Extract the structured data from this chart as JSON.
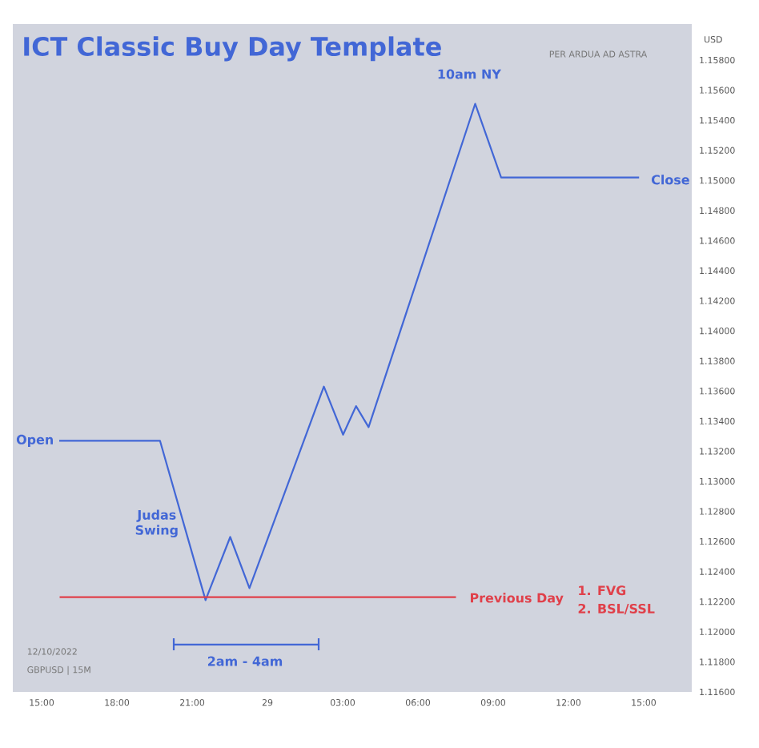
{
  "chart_data": {
    "type": "line",
    "title": "ICT Classic Buy Day Template",
    "ylabel": "USD",
    "annotations": [
      "PER ARDUA AD ASTRA",
      "12/10/2022",
      "GBPUSD | 15M",
      "Open",
      "Judas Swing",
      "10am NY",
      "Close",
      "Previous Day",
      "1. FVG",
      "2. BSL/SSL",
      "2am - 4am"
    ],
    "series": [
      {
        "color": "#4267d6",
        "x": [
          "2022-09-28T15:42",
          "2022-09-28T19:43",
          "2022-09-28T21:32",
          "2022-09-28T22:31",
          "2022-09-28T23:17",
          "2022-09-29T02:15",
          "2022-09-29T03:01",
          "2022-09-29T03:32",
          "2022-09-29T04:02",
          "2022-09-29T08:17",
          "2022-09-29T09:19",
          "2022-09-29T14:49"
        ],
        "values": [
          1.1327,
          1.1327,
          1.1221,
          1.1263,
          1.1229,
          1.1363,
          1.1331,
          1.135,
          1.1336,
          1.1551,
          1.1502,
          1.1502
        ]
      },
      {
        "color": "#e0404a",
        "x": [
          "2022-09-28T15:43",
          "2022-09-29T07:31"
        ],
        "values": [
          1.1223,
          1.1223
        ]
      }
    ],
    "xlim": [
      "2022-09-28T13:51",
      "2022-09-29T16:55"
    ],
    "ylim": [
      1.116,
      1.1604
    ],
    "xticks": [
      {
        "value": "2022-09-28T15:00",
        "label": "15:00"
      },
      {
        "value": "2022-09-28T18:00",
        "label": "18:00"
      },
      {
        "value": "2022-09-28T21:00",
        "label": "21:00"
      },
      {
        "value": "2022-09-29T00:00",
        "label": "29"
      },
      {
        "value": "2022-09-29T03:00",
        "label": "03:00"
      },
      {
        "value": "2022-09-29T06:00",
        "label": "06:00"
      },
      {
        "value": "2022-09-29T09:00",
        "label": "09:00"
      },
      {
        "value": "2022-09-29T12:00",
        "label": "12:00"
      },
      {
        "value": "2022-09-29T15:00",
        "label": "15:00"
      }
    ],
    "yticks": [
      {
        "value": 1.158,
        "label": "1.15800"
      },
      {
        "value": 1.156,
        "label": "1.15600"
      },
      {
        "value": 1.154,
        "label": "1.15400"
      },
      {
        "value": 1.152,
        "label": "1.15200"
      },
      {
        "value": 1.15,
        "label": "1.15000"
      },
      {
        "value": 1.148,
        "label": "1.14800"
      },
      {
        "value": 1.146,
        "label": "1.14600"
      },
      {
        "value": 1.144,
        "label": "1.14400"
      },
      {
        "value": 1.142,
        "label": "1.14200"
      },
      {
        "value": 1.14,
        "label": "1.14000"
      },
      {
        "value": 1.138,
        "label": "1.13800"
      },
      {
        "value": 1.136,
        "label": "1.13600"
      },
      {
        "value": 1.134,
        "label": "1.13400"
      },
      {
        "value": 1.132,
        "label": "1.13200"
      },
      {
        "value": 1.13,
        "label": "1.13000"
      },
      {
        "value": 1.128,
        "label": "1.12800"
      },
      {
        "value": 1.126,
        "label": "1.12600"
      },
      {
        "value": 1.124,
        "label": "1.12400"
      },
      {
        "value": 1.122,
        "label": "1.12200"
      },
      {
        "value": 1.12,
        "label": "1.12000"
      },
      {
        "value": 1.118,
        "label": "1.11800"
      },
      {
        "value": 1.116,
        "label": "1.11600"
      }
    ]
  }
}
